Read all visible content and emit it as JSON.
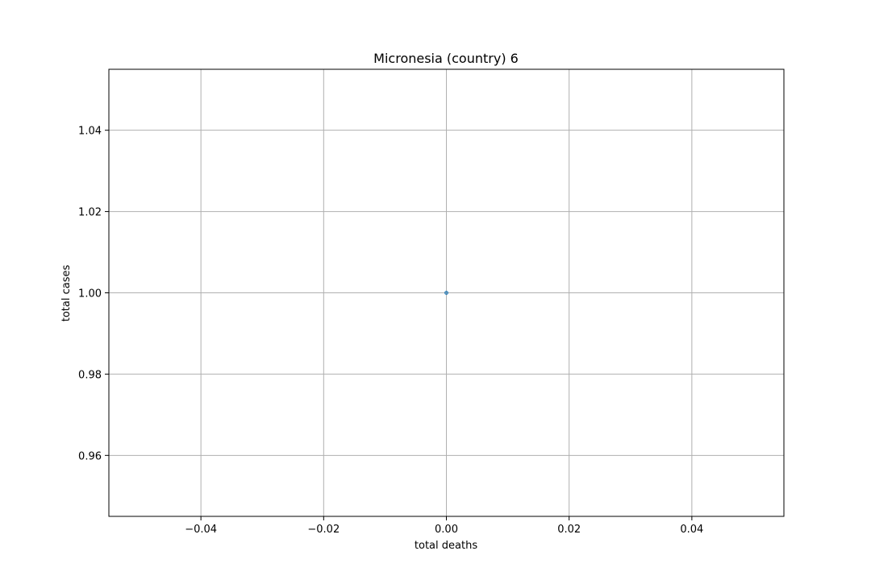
{
  "chart_data": {
    "type": "scatter",
    "title": "Micronesia (country) 6",
    "xlabel": "total deaths",
    "ylabel": "total cases",
    "xlim": [
      -0.055,
      0.055
    ],
    "ylim": [
      0.945,
      1.055
    ],
    "xticks": [
      -0.04,
      -0.02,
      0.0,
      0.02,
      0.04
    ],
    "xtick_labels": [
      "−0.04",
      "−0.02",
      "0.00",
      "0.02",
      "0.04"
    ],
    "yticks": [
      0.96,
      0.98,
      1.0,
      1.02,
      1.04
    ],
    "ytick_labels": [
      "0.96",
      "0.98",
      "1.00",
      "1.02",
      "1.04"
    ],
    "grid": true,
    "points": [
      {
        "x": 0,
        "y": 1
      }
    ],
    "colors": {
      "marker": "#1f77b4",
      "grid": "#b0b0b0",
      "axes": "#000000"
    }
  }
}
